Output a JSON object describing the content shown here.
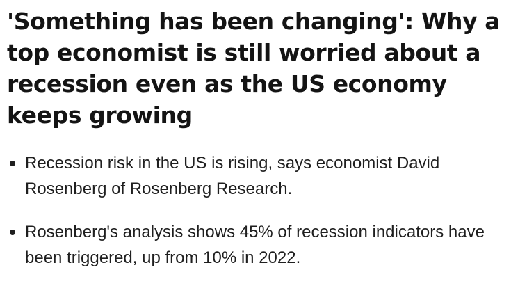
{
  "article": {
    "headline": "'Something has been changing': Why a top economist is still worried about a recession even as the US economy keeps growing",
    "bullets": [
      "Recession risk in the US is rising, says economist David Rosenberg of Rosenberg Research.",
      "Rosenberg's analysis shows 45% of recession indicators have been triggered, up from 10% in 2022."
    ]
  }
}
